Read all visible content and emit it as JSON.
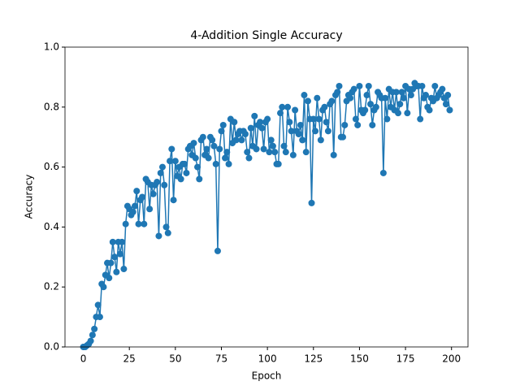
{
  "chart_data": {
    "type": "line",
    "title": "4-Addition Single Accuracy",
    "x_label": "Epoch",
    "y_label": "Accuracy",
    "x": [
      0,
      1,
      2,
      3,
      4,
      5,
      6,
      7,
      8,
      9,
      10,
      11,
      12,
      13,
      14,
      15,
      16,
      17,
      18,
      19,
      20,
      21,
      22,
      23,
      24,
      25,
      26,
      27,
      28,
      29,
      30,
      31,
      32,
      33,
      34,
      35,
      36,
      37,
      38,
      39,
      40,
      41,
      42,
      43,
      44,
      45,
      46,
      47,
      48,
      49,
      50,
      51,
      52,
      53,
      54,
      55,
      56,
      57,
      58,
      59,
      60,
      61,
      62,
      63,
      64,
      65,
      66,
      67,
      68,
      69,
      70,
      71,
      72,
      73,
      74,
      75,
      76,
      77,
      78,
      79,
      80,
      81,
      82,
      83,
      84,
      85,
      86,
      87,
      88,
      89,
      90,
      91,
      92,
      93,
      94,
      95,
      96,
      97,
      98,
      99,
      100,
      101,
      102,
      103,
      104,
      105,
      106,
      107,
      108,
      109,
      110,
      111,
      112,
      113,
      114,
      115,
      116,
      117,
      118,
      119,
      120,
      121,
      122,
      123,
      124,
      125,
      126,
      127,
      128,
      129,
      130,
      131,
      132,
      133,
      134,
      135,
      136,
      137,
      138,
      139,
      140,
      141,
      142,
      143,
      144,
      145,
      146,
      147,
      148,
      149,
      150,
      151,
      152,
      153,
      154,
      155,
      156,
      157,
      158,
      159,
      160,
      161,
      162,
      163,
      164,
      165,
      166,
      167,
      168,
      169,
      170,
      171,
      172,
      173,
      174,
      175,
      176,
      177,
      178,
      179,
      180,
      181,
      182,
      183,
      184,
      185,
      186,
      187,
      188,
      189,
      190,
      191,
      192,
      193,
      194,
      195,
      196,
      197,
      198,
      199
    ],
    "series": [
      {
        "name": "Accuracy",
        "color": "#1f77b4",
        "values": [
          0.0,
          0.0,
          0.005,
          0.01,
          0.02,
          0.04,
          0.06,
          0.1,
          0.14,
          0.1,
          0.21,
          0.2,
          0.24,
          0.28,
          0.23,
          0.28,
          0.35,
          0.3,
          0.25,
          0.35,
          0.31,
          0.35,
          0.26,
          0.41,
          0.47,
          0.46,
          0.44,
          0.45,
          0.47,
          0.52,
          0.41,
          0.49,
          0.5,
          0.41,
          0.56,
          0.55,
          0.46,
          0.54,
          0.51,
          0.54,
          0.55,
          0.37,
          0.58,
          0.6,
          0.54,
          0.4,
          0.38,
          0.62,
          0.66,
          0.49,
          0.62,
          0.57,
          0.6,
          0.56,
          0.61,
          0.61,
          0.58,
          0.66,
          0.67,
          0.64,
          0.68,
          0.63,
          0.6,
          0.56,
          0.69,
          0.7,
          0.64,
          0.66,
          0.63,
          0.7,
          0.69,
          0.67,
          0.61,
          0.32,
          0.66,
          0.72,
          0.74,
          0.63,
          0.65,
          0.61,
          0.76,
          0.68,
          0.75,
          0.69,
          0.71,
          0.72,
          0.69,
          0.72,
          0.71,
          0.65,
          0.63,
          0.73,
          0.67,
          0.77,
          0.66,
          0.74,
          0.75,
          0.73,
          0.66,
          0.75,
          0.76,
          0.65,
          0.69,
          0.67,
          0.65,
          0.61,
          0.61,
          0.78,
          0.8,
          0.67,
          0.65,
          0.8,
          0.75,
          0.72,
          0.64,
          0.79,
          0.72,
          0.71,
          0.74,
          0.69,
          0.84,
          0.65,
          0.82,
          0.76,
          0.48,
          0.76,
          0.72,
          0.83,
          0.76,
          0.69,
          0.79,
          0.8,
          0.75,
          0.72,
          0.81,
          0.82,
          0.64,
          0.84,
          0.85,
          0.87,
          0.7,
          0.7,
          0.74,
          0.82,
          0.84,
          0.83,
          0.85,
          0.86,
          0.76,
          0.74,
          0.87,
          0.79,
          0.78,
          0.79,
          0.84,
          0.87,
          0.81,
          0.74,
          0.79,
          0.8,
          0.85,
          0.84,
          0.83,
          0.58,
          0.83,
          0.76,
          0.86,
          0.8,
          0.85,
          0.79,
          0.85,
          0.78,
          0.81,
          0.85,
          0.83,
          0.87,
          0.78,
          0.86,
          0.84,
          0.86,
          0.88,
          0.87,
          0.87,
          0.76,
          0.87,
          0.83,
          0.84,
          0.8,
          0.79,
          0.83,
          0.82,
          0.87,
          0.83,
          0.84,
          0.85,
          0.86,
          0.83,
          0.81,
          0.84,
          0.79
        ]
      }
    ],
    "xlim": [
      -9.95,
      208.95
    ],
    "xticks": [
      0,
      25,
      50,
      75,
      100,
      125,
      150,
      175,
      200
    ],
    "ylim": [
      0,
      1
    ],
    "yticks": [
      {
        "value": 0,
        "label": "0.0"
      },
      {
        "value": 0.2,
        "label": "0.2"
      },
      {
        "value": 0.4,
        "label": "0.4"
      },
      {
        "value": 0.6,
        "label": "0.6"
      },
      {
        "value": 0.8,
        "label": "0.8"
      },
      {
        "value": 1,
        "label": "1.0"
      }
    ],
    "grid": false
  }
}
